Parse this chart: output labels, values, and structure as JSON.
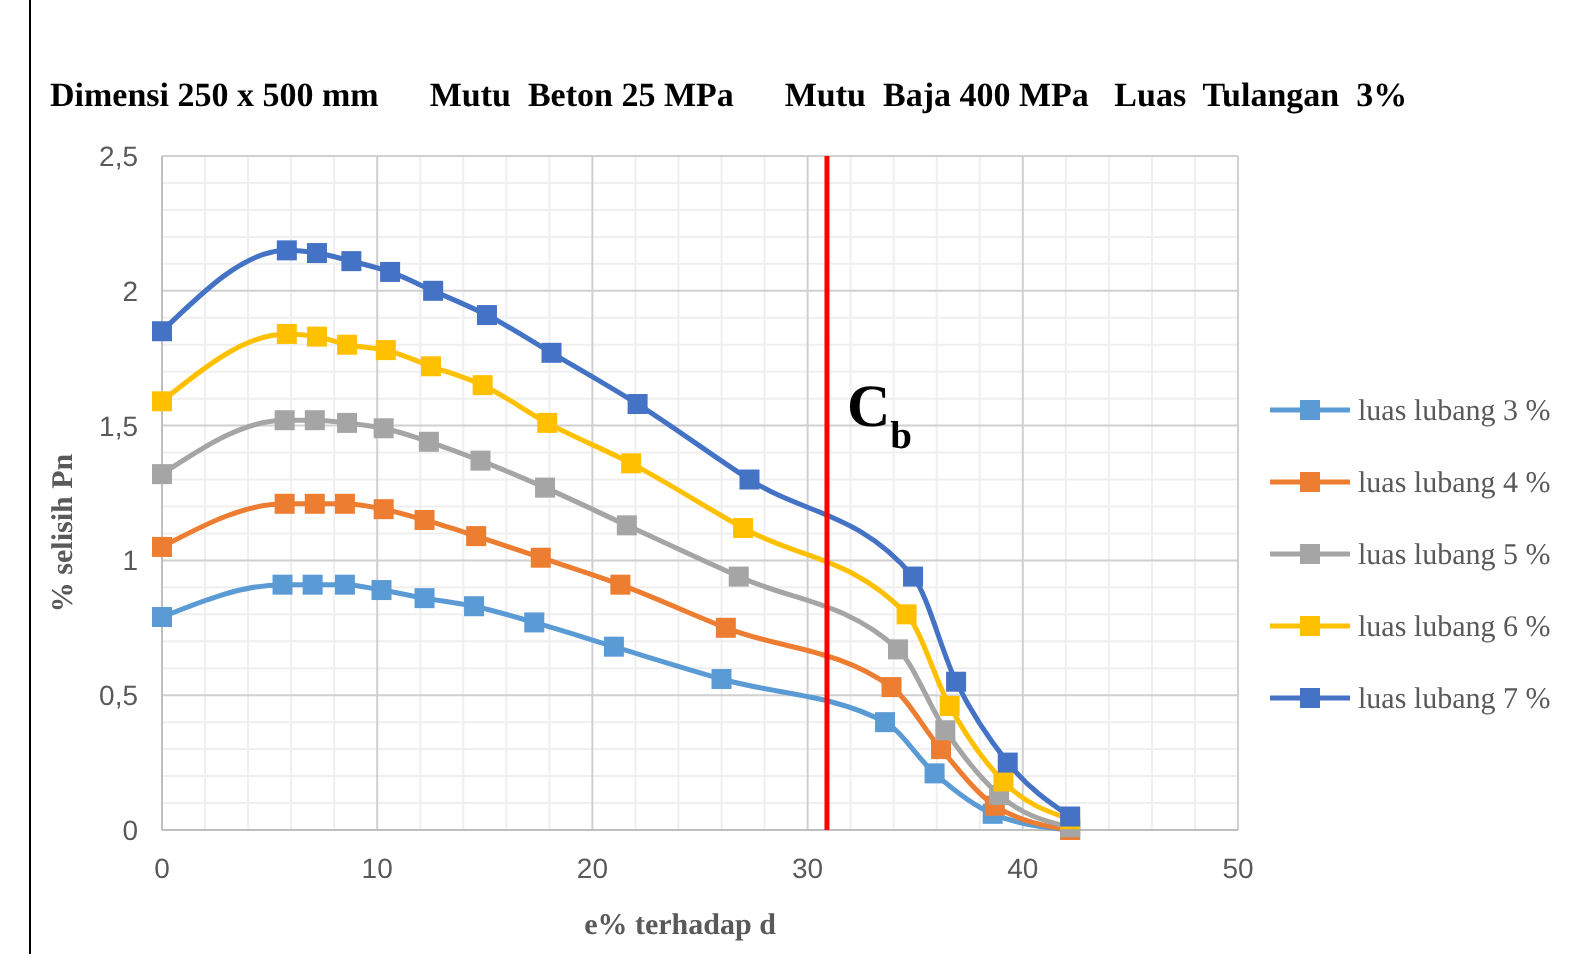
{
  "chart_data": {
    "type": "line",
    "title": "Dimensi 250 x 500 mm      Mutu  Beton 25 MPa      Mutu  Baja 400 MPa   Luas  Tulangan  3%",
    "xlabel": "e% terhadap d",
    "ylabel": "% selisih Pn",
    "xlim": [
      0,
      50
    ],
    "xticks": [
      0,
      10,
      20,
      30,
      40,
      50
    ],
    "ylim": [
      0,
      2.5
    ],
    "yticks": [
      0,
      {
        "value": 0.5,
        "label": "0,5"
      },
      1,
      {
        "value": 1.5,
        "label": "1,5"
      },
      2,
      {
        "value": 2.5,
        "label": "2,5"
      }
    ],
    "grid": true,
    "legend": "right",
    "marker": "square",
    "line_style": "solid",
    "ref_lines": [
      {
        "axis": "x",
        "value": 30.9,
        "label": "C$_{b}$",
        "color": "#ff0000"
      }
    ],
    "series": [
      {
        "name": "luas lubang 3 %",
        "color": "#5b9bd5",
        "x": [
          0,
          5.6,
          7,
          8.5,
          10.2,
          12.2,
          14.5,
          17.3,
          21,
          26,
          33.6,
          35.9,
          38.6,
          42.2
        ],
        "values": [
          0.79,
          0.91,
          0.91,
          0.91,
          0.89,
          0.86,
          0.83,
          0.77,
          0.68,
          0.56,
          0.4,
          0.21,
          0.06,
          0
        ]
      },
      {
        "name": "luas lubang 4 %",
        "color": "#ed7d31",
        "x": [
          0,
          5.7,
          7.1,
          8.5,
          10.3,
          12.2,
          14.6,
          17.6,
          21.3,
          26.2,
          33.9,
          36.2,
          38.7,
          42.2
        ],
        "values": [
          1.05,
          1.21,
          1.21,
          1.21,
          1.19,
          1.15,
          1.09,
          1.01,
          0.91,
          0.75,
          0.53,
          0.3,
          0.09,
          0
        ]
      },
      {
        "name": "luas lubang 5 %",
        "color": "#a5a5a5",
        "x": [
          0,
          5.7,
          7.1,
          8.6,
          10.3,
          12.4,
          14.8,
          17.8,
          21.6,
          26.8,
          34.2,
          36.4,
          38.9,
          42.2
        ],
        "values": [
          1.32,
          1.52,
          1.52,
          1.51,
          1.49,
          1.44,
          1.37,
          1.27,
          1.13,
          0.94,
          0.67,
          0.37,
          0.13,
          0.01
        ]
      },
      {
        "name": "luas lubang 6 %",
        "color": "#ffc000",
        "x": [
          0,
          5.8,
          7.2,
          8.6,
          10.4,
          12.5,
          14.9,
          17.9,
          21.8,
          27,
          34.6,
          36.6,
          39.1,
          42.2
        ],
        "values": [
          1.59,
          1.84,
          1.83,
          1.8,
          1.78,
          1.72,
          1.65,
          1.51,
          1.36,
          1.12,
          0.8,
          0.46,
          0.18,
          0.04
        ]
      },
      {
        "name": "luas lubang 7 %",
        "color": "#4472c4",
        "x": [
          0,
          5.8,
          7.2,
          8.8,
          10.6,
          12.6,
          15.1,
          18.1,
          22.1,
          27.3,
          34.9,
          36.9,
          39.3,
          42.2
        ],
        "values": [
          1.85,
          2.15,
          2.14,
          2.11,
          2.07,
          2,
          1.91,
          1.77,
          1.58,
          1.3,
          0.94,
          0.55,
          0.25,
          0.05
        ]
      }
    ]
  }
}
